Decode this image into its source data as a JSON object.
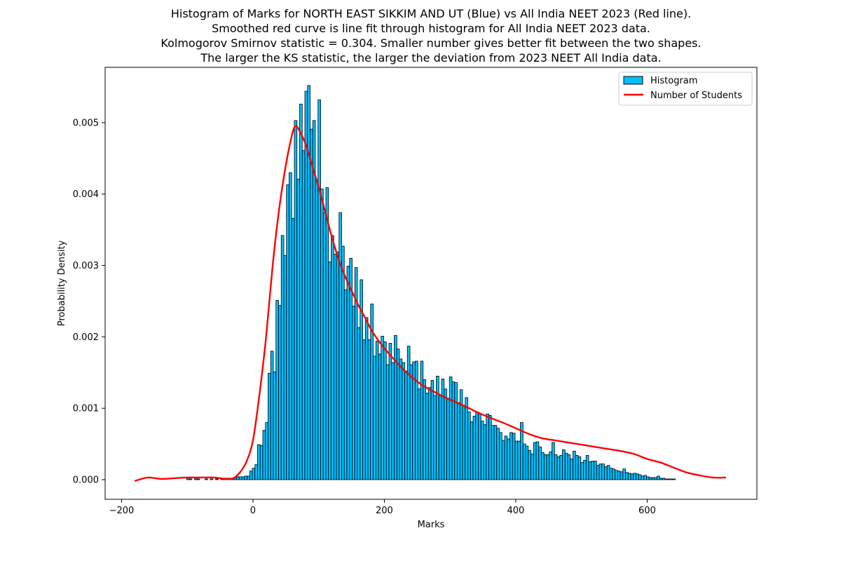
{
  "chart_data": {
    "type": "bar",
    "title_lines": [
      "Histogram of Marks for NORTH EAST SIKKIM AND UT (Blue) vs All India NEET 2023 (Red line).",
      "Smoothed red curve is line fit through histogram for All India NEET 2023 data.",
      "Kolmogorov Smirnov statistic = 0.304. Smaller number gives better fit between the two shapes.",
      "The larger the KS statistic, the larger the deviation from 2023 NEET All India data."
    ],
    "xlabel": "Marks",
    "ylabel": "Probability Density",
    "xlim": [
      -225,
      767
    ],
    "ylim": [
      -0.000275,
      0.005775
    ],
    "xticks": [
      -200,
      0,
      200,
      400,
      600
    ],
    "xtick_labels": [
      "−200",
      "0",
      "200",
      "400",
      "600"
    ],
    "yticks": [
      0.0,
      0.001,
      0.002,
      0.003,
      0.004,
      0.005
    ],
    "ytick_labels": [
      "0.000",
      "0.001",
      "0.002",
      "0.003",
      "0.004",
      "0.005"
    ],
    "grid": false,
    "legend_position": "top-right",
    "colors": {
      "histogram": "#00bfff",
      "histogram_edge": "#000000",
      "curve": "#ff0000"
    },
    "histogram": {
      "name": "Histogram",
      "bin_start": -101,
      "bin_width": 4,
      "values": [
        2e-05,
        1e-05,
        0.0,
        2e-05,
        1e-05,
        0.0,
        0.0,
        1e-05,
        0.0,
        1e-05,
        0.0,
        1e-05,
        0.0,
        1e-05,
        2e-05,
        2e-05,
        2e-05,
        2e-05,
        3e-05,
        4e-05,
        4e-05,
        4e-05,
        5e-05,
        5e-05,
        0.00012,
        0.00016,
        0.00021,
        0.00049,
        0.00048,
        0.00069,
        0.0008,
        0.00149,
        0.0018,
        0.00151,
        0.00251,
        0.00244,
        0.00342,
        0.00314,
        0.00413,
        0.0043,
        0.00366,
        0.00503,
        0.00421,
        0.00526,
        0.00461,
        0.00544,
        0.00552,
        0.00491,
        0.00503,
        0.00417,
        0.00532,
        0.00407,
        0.00374,
        0.00409,
        0.00305,
        0.00342,
        0.00316,
        0.00319,
        0.00374,
        0.00327,
        0.00266,
        0.00299,
        0.0031,
        0.00243,
        0.00297,
        0.00213,
        0.0028,
        0.00196,
        0.00227,
        0.00196,
        0.00246,
        0.00173,
        0.00194,
        0.00176,
        0.00201,
        0.00193,
        0.00161,
        0.00191,
        0.00164,
        0.00202,
        0.00183,
        0.00169,
        0.00164,
        0.00152,
        0.00187,
        0.00161,
        0.00165,
        0.00166,
        0.00127,
        0.00166,
        0.0014,
        0.00121,
        0.00129,
        0.00139,
        0.00118,
        0.00145,
        0.00118,
        0.00141,
        0.00127,
        0.00114,
        0.00144,
        0.00137,
        0.00136,
        0.00108,
        0.00126,
        0.00104,
        0.00115,
        0.00095,
        0.00081,
        0.00089,
        0.00094,
        0.00092,
        0.00082,
        0.00077,
        0.00092,
        0.0009,
        0.00076,
        0.00076,
        0.00072,
        0.00066,
        0.00055,
        0.00061,
        0.00057,
        0.00066,
        0.00065,
        0.00054,
        0.00054,
        0.0008,
        0.0005,
        0.00047,
        0.00041,
        0.00036,
        0.00052,
        0.00053,
        0.00046,
        0.00038,
        0.00035,
        0.00035,
        0.00039,
        0.00052,
        0.00035,
        0.00032,
        0.00034,
        0.00042,
        0.00037,
        0.00035,
        0.00029,
        0.0004,
        0.00034,
        0.00032,
        0.00024,
        0.00027,
        0.00034,
        0.00025,
        0.00026,
        0.00026,
        0.0002,
        0.00022,
        0.00022,
        0.00018,
        0.0002,
        0.00016,
        0.00015,
        0.00013,
        0.00012,
        0.00011,
        0.00015,
        0.0001,
        9e-05,
        8e-05,
        9e-05,
        8e-05,
        7e-05,
        5e-05,
        6e-05,
        4e-05,
        3e-05,
        3e-05,
        3e-05,
        5e-05,
        2e-05,
        2e-05,
        1e-05,
        1e-05,
        1e-05,
        1e-05
      ]
    },
    "curve": {
      "name": "Number of Students",
      "x": [
        -180,
        -160,
        -140,
        -120,
        -100,
        -80,
        -60,
        -50,
        -40,
        -30,
        -20,
        -10,
        0,
        10,
        20,
        30,
        40,
        50,
        60,
        65,
        70,
        80,
        90,
        100,
        110,
        120,
        130,
        140,
        150,
        160,
        170,
        180,
        190,
        200,
        220,
        240,
        260,
        280,
        300,
        320,
        340,
        360,
        380,
        400,
        420,
        440,
        460,
        480,
        500,
        520,
        540,
        560,
        580,
        600,
        620,
        640,
        660,
        680,
        700,
        720
      ],
      "y": [
        -2e-05,
        3e-05,
        1e-05,
        2e-05,
        3e-05,
        3e-05,
        3e-05,
        2e-05,
        1e-05,
        2e-05,
        0.0001,
        0.00025,
        0.00055,
        0.0012,
        0.002,
        0.003,
        0.0038,
        0.0044,
        0.00485,
        0.00495,
        0.0049,
        0.0047,
        0.0044,
        0.0041,
        0.00375,
        0.0034,
        0.0031,
        0.00285,
        0.00265,
        0.00245,
        0.00228,
        0.0021,
        0.00196,
        0.00184,
        0.00163,
        0.00145,
        0.00131,
        0.00121,
        0.00112,
        0.00104,
        0.00095,
        0.00087,
        0.0008,
        0.00072,
        0.00064,
        0.00058,
        0.00055,
        0.00052,
        0.00049,
        0.00046,
        0.00043,
        0.0004,
        0.00036,
        0.00029,
        0.00024,
        0.00017,
        0.0001,
        6e-05,
        3e-05,
        3e-05
      ]
    }
  }
}
